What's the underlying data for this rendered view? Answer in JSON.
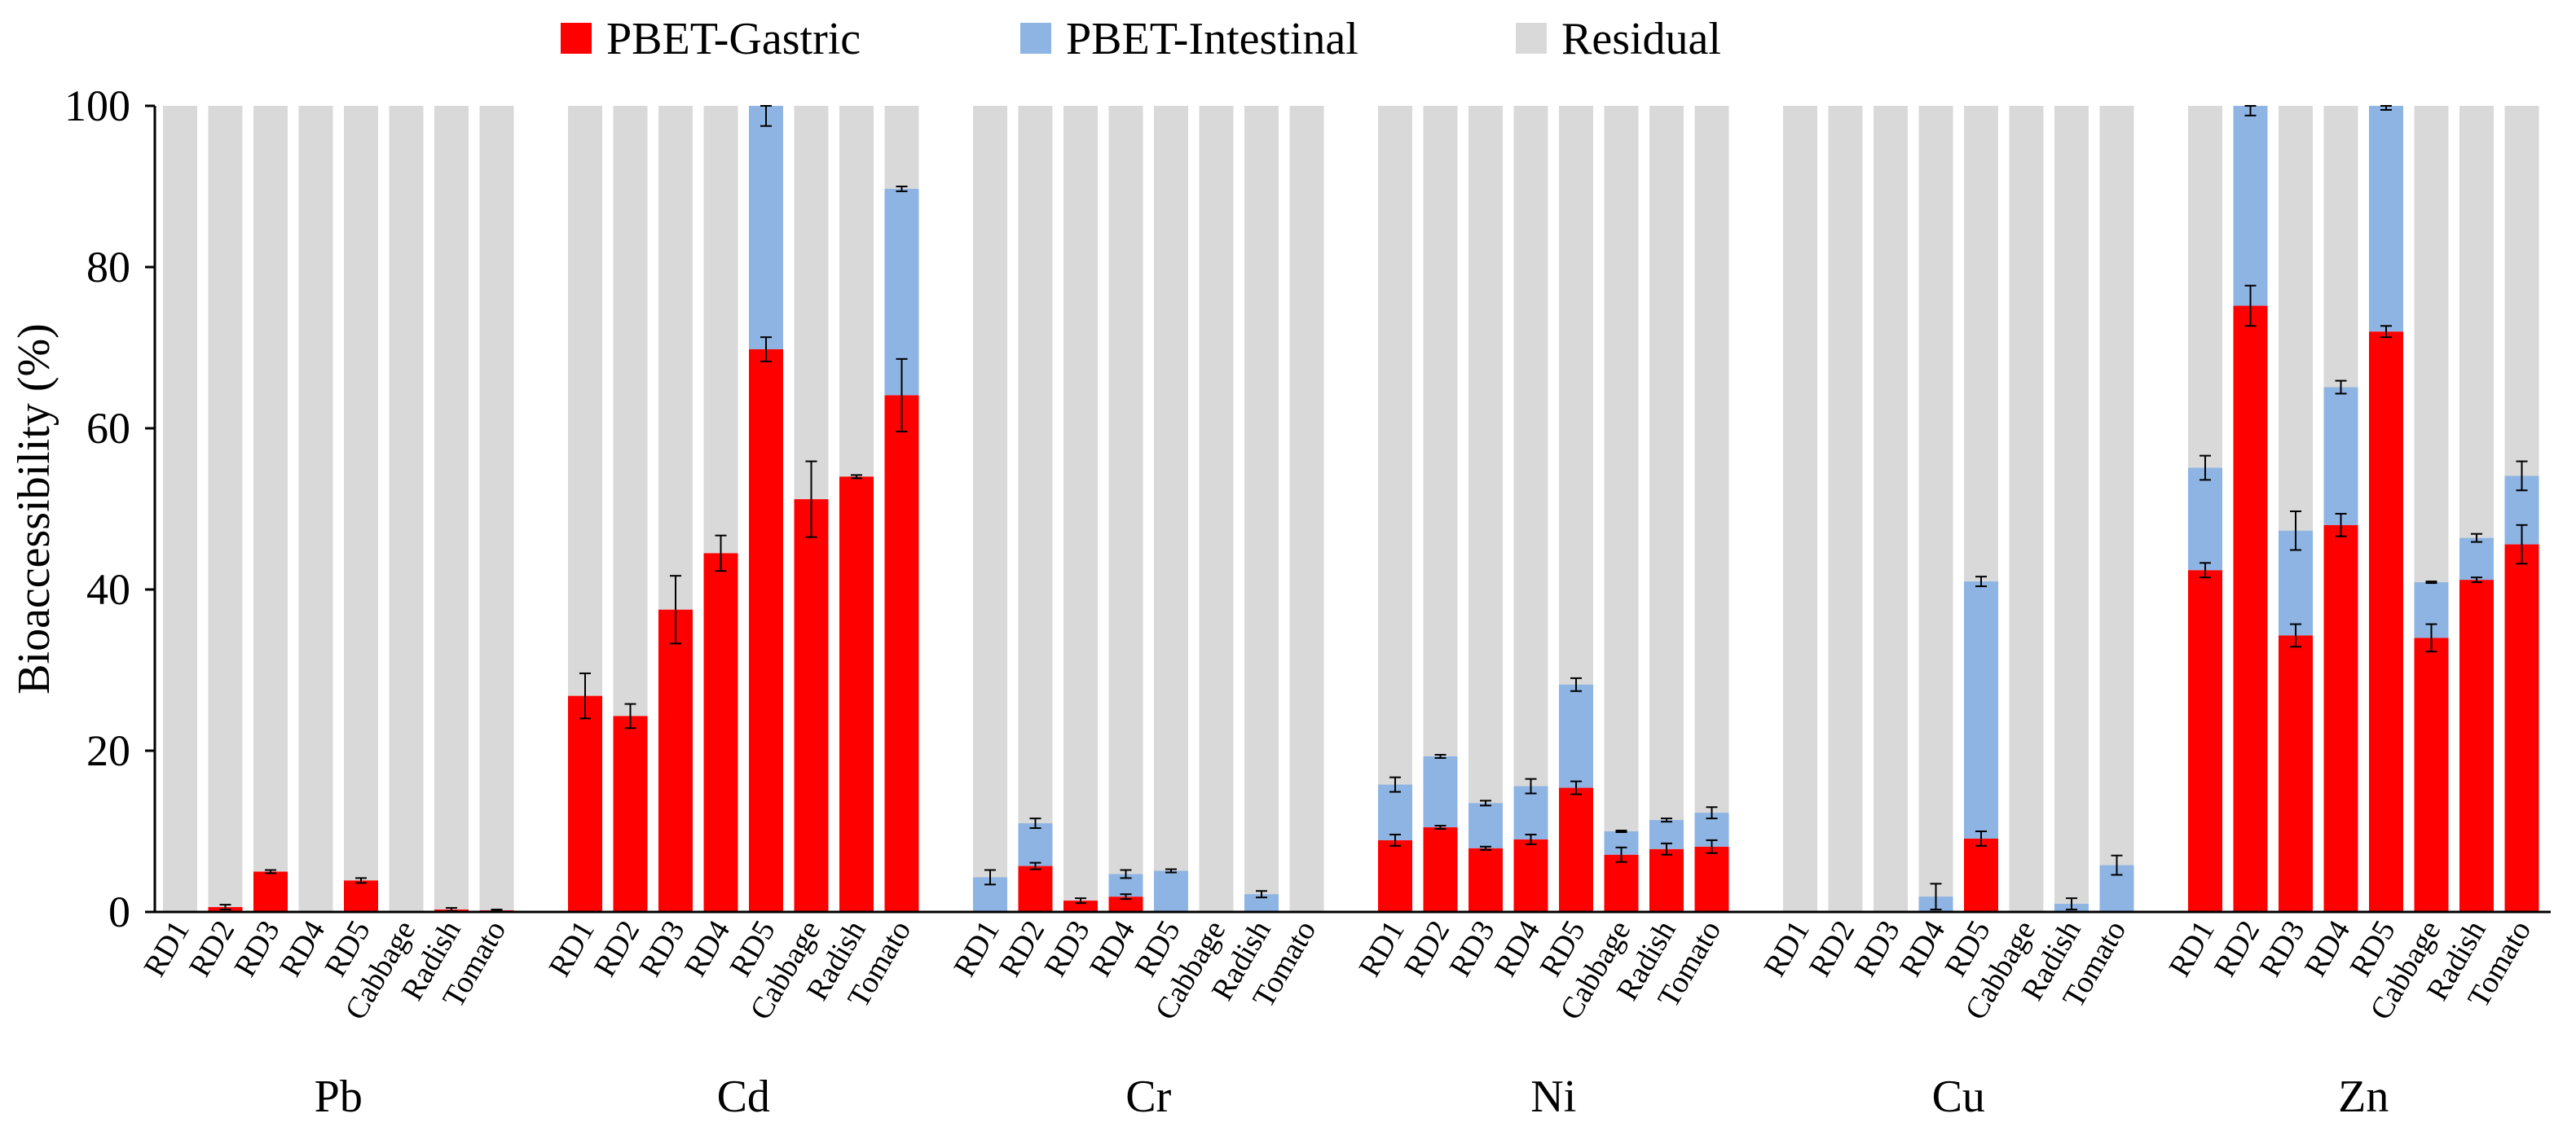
{
  "chart_data": {
    "type": "bar",
    "stacked": true,
    "ylabel": "Bioaccessibility (%)",
    "ylim": [
      0,
      100
    ],
    "yticks": [
      0,
      20,
      40,
      60,
      80,
      100
    ],
    "legend": {
      "position": "top-center",
      "entries": [
        {
          "name": "PBET-Gastric",
          "color": "#ff0000"
        },
        {
          "name": "PBET-Intestinal",
          "color": "#8db4e2"
        },
        {
          "name": "Residual",
          "color": "#d9d9d9"
        }
      ]
    },
    "categories": [
      "RD1",
      "RD2",
      "RD3",
      "RD4",
      "RD5",
      "Cabbage",
      "Radish",
      "Tomato"
    ],
    "groups": [
      {
        "name": "Pb",
        "gastric": [
          0,
          0.6,
          5.0,
          0,
          3.9,
          0,
          0.3,
          0.2
        ],
        "gastric_err": [
          0,
          0.3,
          0.2,
          0,
          0.3,
          0,
          0.2,
          0.1
        ],
        "intestinal": [
          0,
          0,
          0,
          0,
          0,
          0,
          0,
          0
        ],
        "intestinal_err": [
          0,
          0,
          0,
          0,
          0,
          0,
          0,
          0
        ]
      },
      {
        "name": "Cd",
        "gastric": [
          26.8,
          24.3,
          37.5,
          44.5,
          69.8,
          51.2,
          54.0,
          64.1
        ],
        "gastric_err": [
          2.8,
          1.5,
          4.2,
          2.2,
          1.5,
          4.7,
          0.2,
          4.5
        ],
        "intestinal": [
          0,
          0,
          0,
          0,
          30.2,
          0,
          0,
          25.6
        ],
        "intestinal_err": [
          0,
          0,
          0,
          0,
          2.5,
          0,
          0,
          0.3
        ]
      },
      {
        "name": "Cr",
        "gastric": [
          0,
          5.7,
          1.4,
          1.9,
          0,
          0,
          0,
          0
        ],
        "gastric_err": [
          0,
          0.4,
          0.3,
          0.3,
          0,
          0,
          0,
          0
        ],
        "intestinal": [
          4.3,
          5.3,
          0,
          2.8,
          5.1,
          0,
          2.2,
          0
        ],
        "intestinal_err": [
          0.9,
          0.6,
          0,
          0.5,
          0.2,
          0,
          0.4,
          0
        ]
      },
      {
        "name": "Ni",
        "gastric": [
          8.9,
          10.5,
          7.9,
          9.0,
          15.4,
          7.1,
          7.8,
          8.1
        ],
        "gastric_err": [
          0.7,
          0.2,
          0.2,
          0.6,
          0.8,
          0.9,
          0.7,
          0.8
        ],
        "intestinal": [
          6.9,
          8.8,
          5.6,
          6.6,
          12.8,
          2.9,
          3.6,
          4.2
        ],
        "intestinal_err": [
          0.9,
          0.2,
          0.3,
          0.9,
          0.8,
          0.1,
          0.2,
          0.7
        ]
      },
      {
        "name": "Cu",
        "gastric": [
          0,
          0,
          0,
          0,
          9.1,
          0,
          0,
          0
        ],
        "gastric_err": [
          0,
          0,
          0,
          0,
          0.9,
          0,
          0,
          0
        ],
        "intestinal": [
          0,
          0,
          0,
          1.9,
          31.9,
          0,
          1.0,
          5.8
        ],
        "intestinal_err": [
          0,
          0,
          0,
          1.6,
          0.6,
          0,
          0.7,
          1.2
        ]
      },
      {
        "name": "Zn",
        "gastric": [
          42.4,
          75.2,
          34.3,
          48.0,
          72.0,
          34.0,
          41.2,
          45.6
        ],
        "gastric_err": [
          0.9,
          2.5,
          1.4,
          1.4,
          0.7,
          1.7,
          0.3,
          2.4
        ],
        "intestinal": [
          12.7,
          24.8,
          13.0,
          17.1,
          28.0,
          6.9,
          5.2,
          8.5
        ],
        "intestinal_err": [
          1.5,
          1.2,
          2.4,
          0.8,
          0.5,
          0.1,
          0.5,
          1.8
        ]
      }
    ]
  }
}
